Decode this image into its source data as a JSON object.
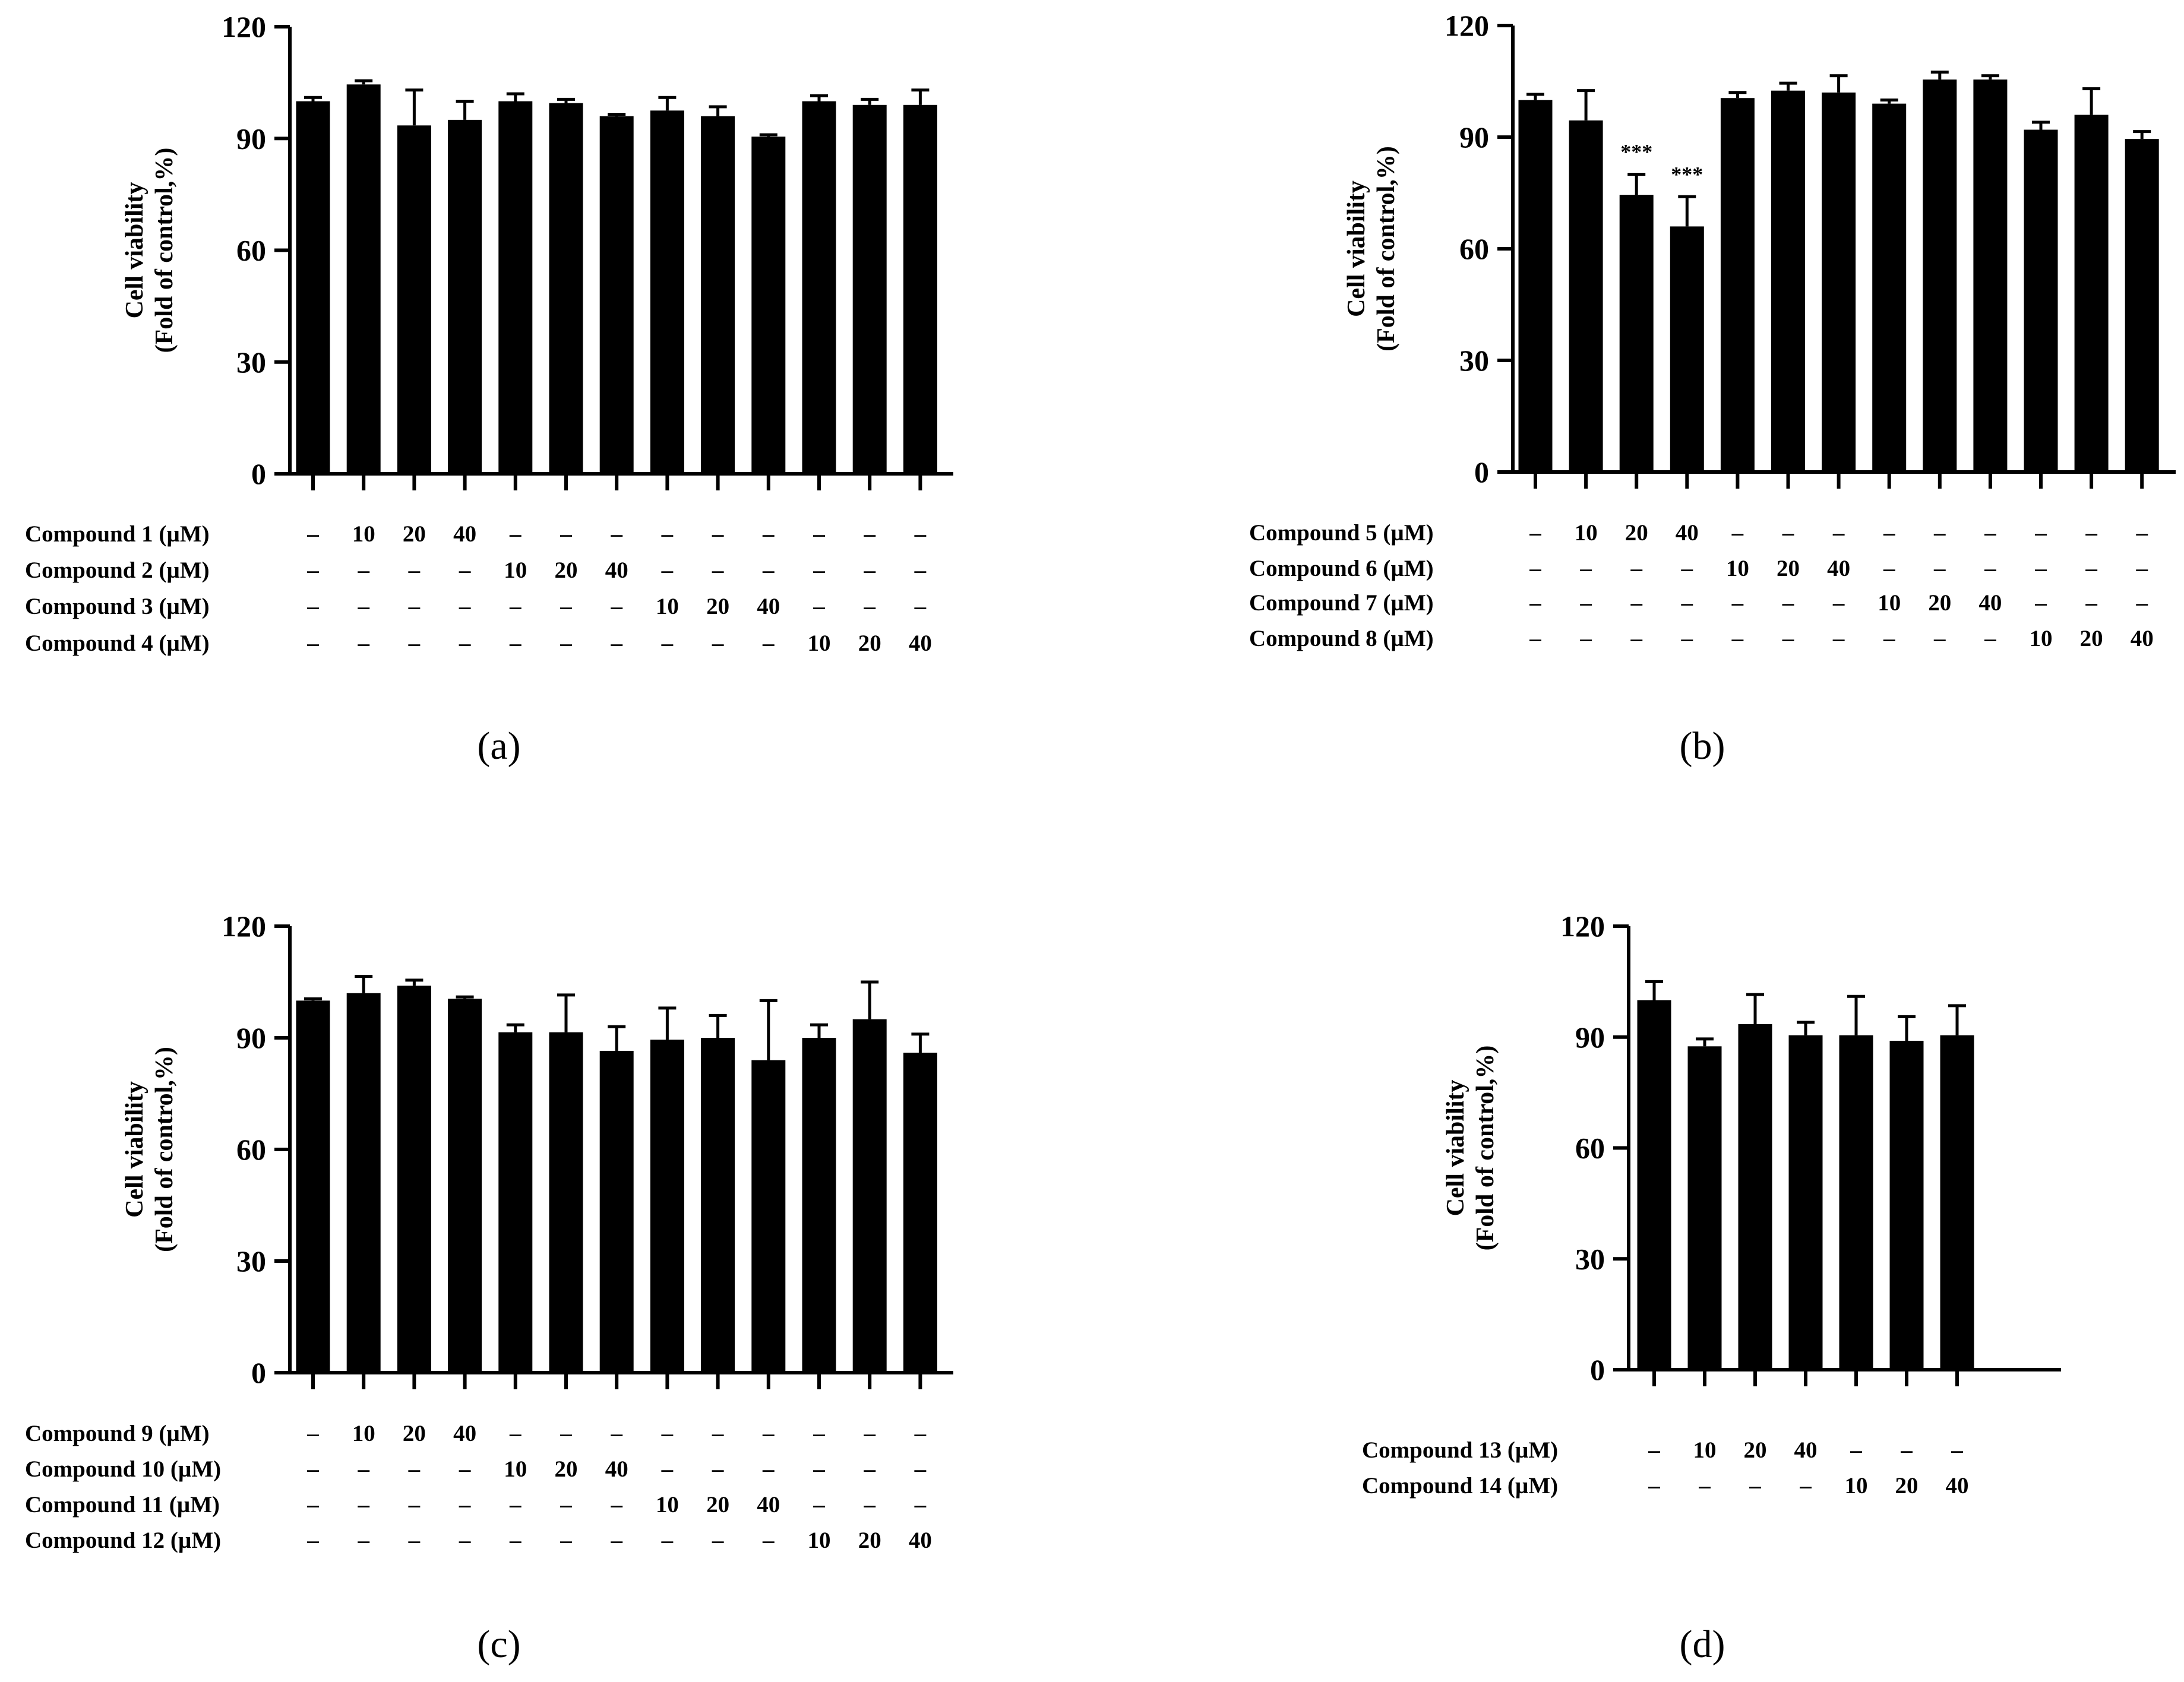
{
  "chart_data": [
    {
      "type": "bar",
      "panel_label": "(a)",
      "ylabel_line1": "Cell viability",
      "ylabel_line2": "(Fold of control,%)",
      "ylim": [
        0,
        120
      ],
      "yticks": [
        0,
        30,
        60,
        90,
        120
      ],
      "values": [
        100,
        104.5,
        93.5,
        95,
        100,
        99.5,
        96,
        97.5,
        96,
        90.5,
        100,
        99,
        99
      ],
      "errors": [
        1,
        1,
        9.5,
        5,
        2,
        1,
        0.5,
        3.5,
        2.5,
        0.5,
        1.5,
        1.5,
        4
      ],
      "significance": [
        "",
        "",
        "",
        "",
        "",
        "",
        "",
        "",
        "",
        "",
        "",
        "",
        ""
      ],
      "rows": [
        {
          "label": "Compound 1 (µM)",
          "cells": [
            "–",
            "10",
            "20",
            "40",
            "–",
            "–",
            "–",
            "–",
            "–",
            "–",
            "–",
            "–",
            "–"
          ]
        },
        {
          "label": "Compound 2 (µM)",
          "cells": [
            "–",
            "–",
            "–",
            "–",
            "10",
            "20",
            "40",
            "–",
            "–",
            "–",
            "–",
            "–",
            "–"
          ]
        },
        {
          "label": "Compound 3 (µM)",
          "cells": [
            "–",
            "–",
            "–",
            "–",
            "–",
            "–",
            "–",
            "10",
            "20",
            "40",
            "–",
            "–",
            "–"
          ]
        },
        {
          "label": "Compound 4 (µM)",
          "cells": [
            "–",
            "–",
            "–",
            "–",
            "–",
            "–",
            "–",
            "–",
            "–",
            "–",
            "10",
            "20",
            "40"
          ]
        }
      ]
    },
    {
      "type": "bar",
      "panel_label": "(b)",
      "ylabel_line1": "Cell viability",
      "ylabel_line2": "(Fold of control,%)",
      "ylim": [
        0,
        120
      ],
      "yticks": [
        0,
        30,
        60,
        90,
        120
      ],
      "values": [
        100,
        94.5,
        74.5,
        66,
        100.5,
        102.5,
        102,
        99,
        105.5,
        105.5,
        92,
        96,
        89.5
      ],
      "errors": [
        1.5,
        8,
        5.5,
        8,
        1.5,
        2,
        4.5,
        1,
        2,
        1,
        2,
        7,
        2
      ],
      "significance": [
        "",
        "",
        "***",
        "***",
        "",
        "",
        "",
        "",
        "",
        "",
        "",
        "",
        ""
      ],
      "rows": [
        {
          "label": "Compound 5 (µM)",
          "cells": [
            "–",
            "10",
            "20",
            "40",
            "–",
            "–",
            "–",
            "–",
            "–",
            "–",
            "–",
            "–",
            "–"
          ]
        },
        {
          "label": "Compound 6 (µM)",
          "cells": [
            "–",
            "–",
            "–",
            "–",
            "10",
            "20",
            "40",
            "–",
            "–",
            "–",
            "–",
            "–",
            "–"
          ]
        },
        {
          "label": "Compound 7 (µM)",
          "cells": [
            "–",
            "–",
            "–",
            "–",
            "–",
            "–",
            "–",
            "10",
            "20",
            "40",
            "–",
            "–",
            "–"
          ]
        },
        {
          "label": "Compound 8 (µM)",
          "cells": [
            "–",
            "–",
            "–",
            "–",
            "–",
            "–",
            "–",
            "–",
            "–",
            "–",
            "10",
            "20",
            "40"
          ]
        }
      ]
    },
    {
      "type": "bar",
      "panel_label": "(c)",
      "ylabel_line1": "Cell viability",
      "ylabel_line2": "(Fold of control,%)",
      "ylim": [
        0,
        120
      ],
      "yticks": [
        0,
        30,
        60,
        90,
        120
      ],
      "values": [
        100,
        102,
        104,
        100.5,
        91.5,
        91.5,
        86.5,
        89.5,
        90,
        84,
        90,
        95,
        86
      ],
      "errors": [
        0.5,
        4.5,
        1.5,
        0.5,
        2,
        10,
        6.5,
        8.5,
        6,
        16,
        3.5,
        10,
        5
      ],
      "significance": [
        "",
        "",
        "",
        "",
        "",
        "",
        "",
        "",
        "",
        "",
        "",
        "",
        ""
      ],
      "rows": [
        {
          "label": "Compound 9 (µM)",
          "cells": [
            "–",
            "10",
            "20",
            "40",
            "–",
            "–",
            "–",
            "–",
            "–",
            "–",
            "–",
            "–",
            "–"
          ]
        },
        {
          "label": "Compound 10 (µM)",
          "cells": [
            "–",
            "–",
            "–",
            "–",
            "10",
            "20",
            "40",
            "–",
            "–",
            "–",
            "–",
            "–",
            "–"
          ]
        },
        {
          "label": "Compound 11 (µM)",
          "cells": [
            "–",
            "–",
            "–",
            "–",
            "–",
            "–",
            "–",
            "10",
            "20",
            "40",
            "–",
            "–",
            "–"
          ]
        },
        {
          "label": "Compound 12 (µM)",
          "cells": [
            "–",
            "–",
            "–",
            "–",
            "–",
            "–",
            "–",
            "–",
            "–",
            "–",
            "10",
            "20",
            "40"
          ]
        }
      ]
    },
    {
      "type": "bar",
      "panel_label": "(d)",
      "ylabel_line1": "Cell viability",
      "ylabel_line2": "(Fold of control,%)",
      "ylim": [
        0,
        120
      ],
      "yticks": [
        0,
        30,
        60,
        90,
        120
      ],
      "values": [
        100,
        87.5,
        93.5,
        90.5,
        90.5,
        89,
        90.5
      ],
      "errors": [
        5,
        2,
        8,
        3.5,
        10.5,
        6.5,
        8
      ],
      "significance": [
        "",
        "",
        "",
        "",
        "",
        "",
        ""
      ],
      "rows": [
        {
          "label": "Compound 13 (µM)",
          "cells": [
            "–",
            "10",
            "20",
            "40",
            "–",
            "–",
            "–"
          ]
        },
        {
          "label": "Compound 14 (µM)",
          "cells": [
            "–",
            "–",
            "–",
            "–",
            "10",
            "20",
            "40"
          ]
        }
      ]
    }
  ]
}
